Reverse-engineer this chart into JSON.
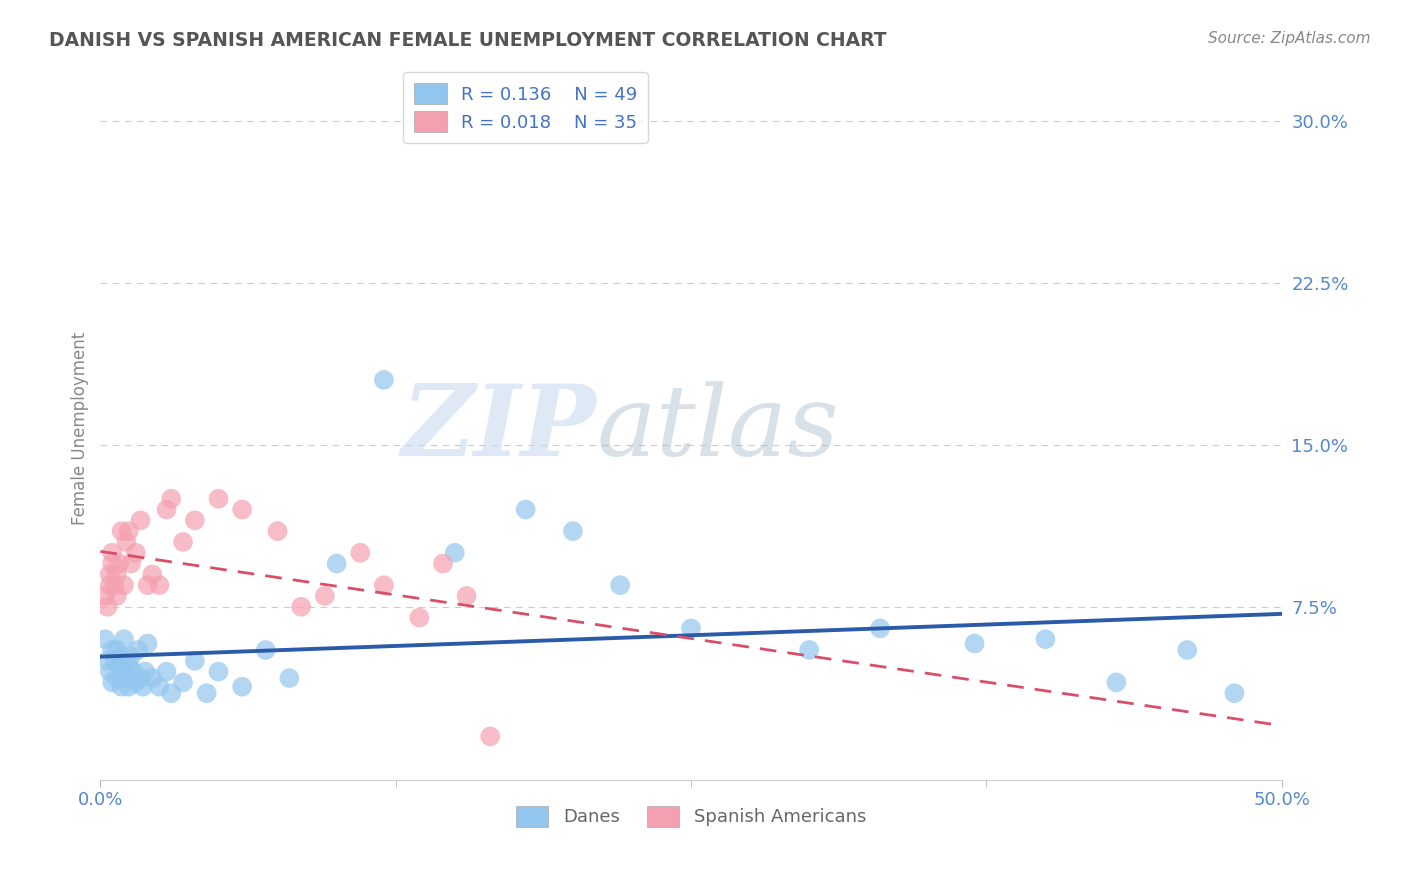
{
  "title": "DANISH VS SPANISH AMERICAN FEMALE UNEMPLOYMENT CORRELATION CHART",
  "source": "Source: ZipAtlas.com",
  "ylabel": "Female Unemployment",
  "watermark_zip": "ZIP",
  "watermark_atlas": "atlas",
  "xlim": [
    0.0,
    0.5
  ],
  "ylim": [
    -0.005,
    0.32
  ],
  "yticks": [
    0.075,
    0.15,
    0.225,
    0.3
  ],
  "ytick_labels": [
    "7.5%",
    "15.0%",
    "22.5%",
    "30.0%"
  ],
  "legend_r1": "R = 0.136",
  "legend_n1": "N = 49",
  "legend_r2": "R = 0.018",
  "legend_n2": "N = 35",
  "color_danes": "#93C6EE",
  "color_spanish": "#F4A0B0",
  "line_color_danes": "#2B5BA8",
  "line_color_spanish": "#D94F6A",
  "background_color": "#FFFFFF",
  "grid_color": "#CCCCCC",
  "title_color": "#555555",
  "axis_label_color": "#888888",
  "tick_color": "#5588CC",
  "legend_text_color": "#4472C4",
  "source_color": "#888888",
  "danes_x": [
    0.002,
    0.003,
    0.004,
    0.005,
    0.005,
    0.006,
    0.007,
    0.007,
    0.008,
    0.009,
    0.009,
    0.01,
    0.01,
    0.011,
    0.012,
    0.012,
    0.013,
    0.014,
    0.015,
    0.016,
    0.017,
    0.018,
    0.019,
    0.02,
    0.022,
    0.025,
    0.028,
    0.03,
    0.035,
    0.04,
    0.045,
    0.05,
    0.06,
    0.07,
    0.08,
    0.1,
    0.12,
    0.15,
    0.18,
    0.2,
    0.22,
    0.25,
    0.3,
    0.33,
    0.37,
    0.4,
    0.43,
    0.46,
    0.48
  ],
  "danes_y": [
    0.06,
    0.05,
    0.045,
    0.055,
    0.04,
    0.05,
    0.042,
    0.055,
    0.048,
    0.052,
    0.038,
    0.045,
    0.06,
    0.042,
    0.048,
    0.038,
    0.052,
    0.045,
    0.04,
    0.055,
    0.042,
    0.038,
    0.045,
    0.058,
    0.042,
    0.038,
    0.045,
    0.035,
    0.04,
    0.05,
    0.035,
    0.045,
    0.038,
    0.055,
    0.042,
    0.095,
    0.18,
    0.1,
    0.12,
    0.11,
    0.085,
    0.065,
    0.055,
    0.065,
    0.058,
    0.06,
    0.04,
    0.055,
    0.035
  ],
  "spanish_x": [
    0.002,
    0.003,
    0.004,
    0.004,
    0.005,
    0.005,
    0.006,
    0.007,
    0.007,
    0.008,
    0.009,
    0.01,
    0.011,
    0.012,
    0.013,
    0.015,
    0.017,
    0.02,
    0.022,
    0.025,
    0.028,
    0.03,
    0.035,
    0.04,
    0.05,
    0.06,
    0.075,
    0.085,
    0.095,
    0.11,
    0.12,
    0.135,
    0.145,
    0.155,
    0.165
  ],
  "spanish_y": [
    0.08,
    0.075,
    0.09,
    0.085,
    0.095,
    0.1,
    0.085,
    0.09,
    0.08,
    0.095,
    0.11,
    0.085,
    0.105,
    0.11,
    0.095,
    0.1,
    0.115,
    0.085,
    0.09,
    0.085,
    0.12,
    0.125,
    0.105,
    0.115,
    0.125,
    0.12,
    0.11,
    0.075,
    0.08,
    0.1,
    0.085,
    0.07,
    0.095,
    0.08,
    0.015
  ]
}
